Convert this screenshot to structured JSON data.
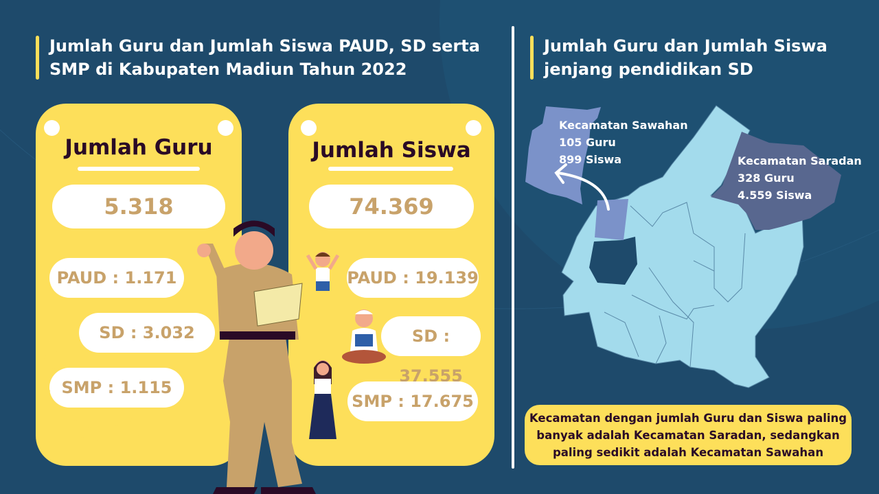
{
  "colors": {
    "background": "#1e4a6b",
    "card": "#fddf5a",
    "accent_text": "#c8a26a",
    "title_text": "#2a0a26",
    "map_base": "#a3dbec",
    "map_highest": "#58678f",
    "map_lowest": "#7b92c9"
  },
  "left": {
    "title": "Jumlah Guru dan Jumlah Siswa PAUD, SD serta SMP di Kabupaten Madiun Tahun 2022",
    "guru": {
      "heading": "Jumlah Guru",
      "total": "5.318",
      "items": [
        "PAUD : 1.171",
        "SD : 3.032",
        "SMP : 1.115"
      ]
    },
    "siswa": {
      "heading": "Jumlah Siswa",
      "total": "74.369",
      "items": [
        "PAUD : 19.139",
        "SD : 37.555",
        "SMP : 17.675"
      ]
    }
  },
  "right": {
    "title": "Jumlah Guru dan Jumlah Siswa jenjang pendidikan SD",
    "sawahan": {
      "name": "Kecamatan Sawahan",
      "guru": "105 Guru",
      "siswa": "899 Siswa"
    },
    "saradan": {
      "name": "Kecamatan Saradan",
      "guru": "328 Guru",
      "siswa": "4.559 Siswa"
    },
    "note": "Kecamatan dengan jumlah Guru dan Siswa paling banyak adalah Kecamatan Saradan, sedangkan paling sedikit adalah Kecamatan Sawahan"
  }
}
